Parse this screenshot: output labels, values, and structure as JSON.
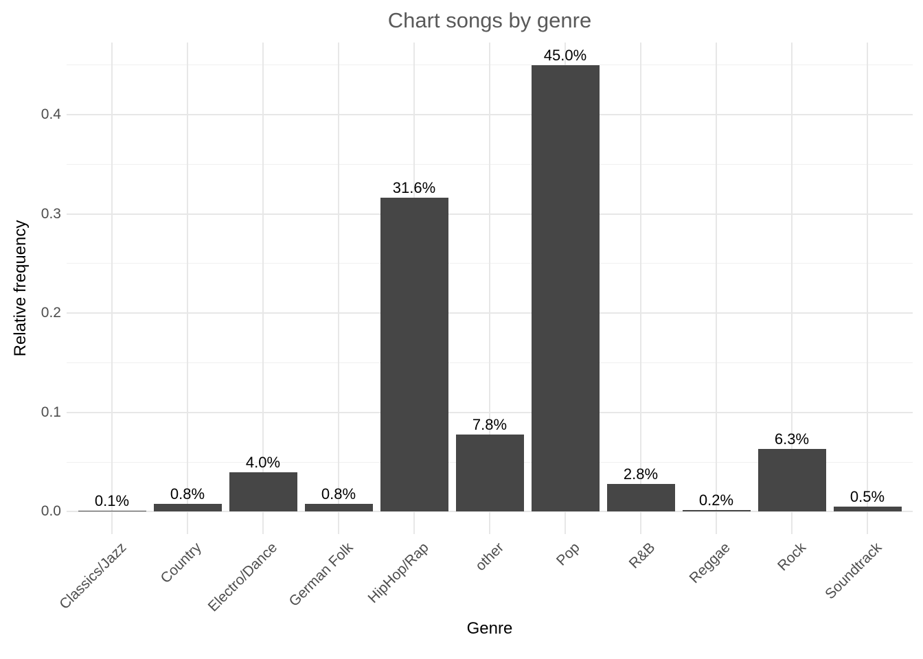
{
  "chart_data": {
    "type": "bar",
    "title": "Chart songs by genre",
    "xlabel": "Genre",
    "ylabel": "Relative frequency",
    "categories": [
      "Classics/Jazz",
      "Country",
      "Electro/Dance",
      "German Folk",
      "HipHop/Rap",
      "other",
      "Pop",
      "R&B",
      "Reggae",
      "Rock",
      "Soundtrack"
    ],
    "values": [
      0.001,
      0.008,
      0.04,
      0.008,
      0.316,
      0.078,
      0.45,
      0.028,
      0.002,
      0.063,
      0.005
    ],
    "bar_labels": [
      "0.1%",
      "0.8%",
      "4.0%",
      "0.8%",
      "31.6%",
      "7.8%",
      "45.0%",
      "2.8%",
      "0.2%",
      "6.3%",
      "0.5%"
    ],
    "y_major_ticks": [
      0.0,
      0.1,
      0.2,
      0.3,
      0.4
    ],
    "y_major_tick_labels": [
      "0.0",
      "0.1",
      "0.2",
      "0.3",
      "0.4"
    ],
    "y_minor_ticks": [
      0.05,
      0.15,
      0.25,
      0.35,
      0.45
    ],
    "ylim": [
      -0.0225,
      0.4725
    ],
    "grid": "on",
    "legend": "none",
    "bar_color": "#464646",
    "gridline_color": "#e7e7e7",
    "tick_label_color": "#4d4d4d",
    "title_color": "#595959",
    "axis_title_color": "#000000",
    "background_color": "#ffffff"
  }
}
